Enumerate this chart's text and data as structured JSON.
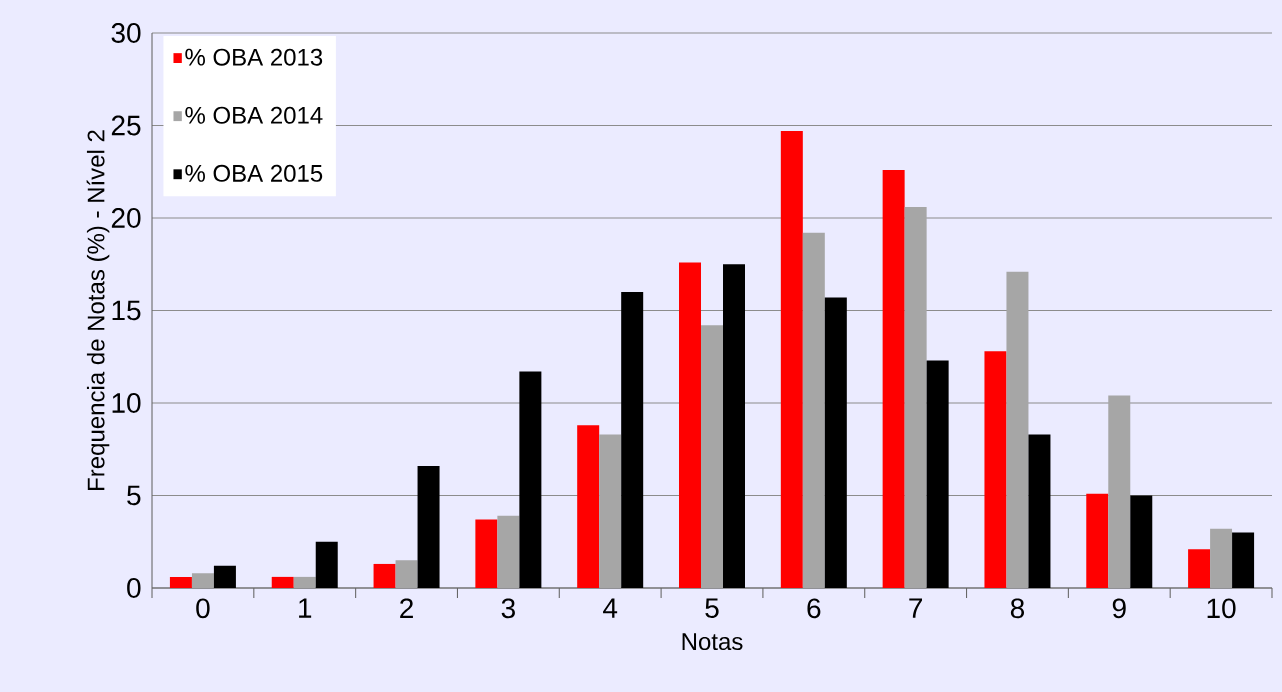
{
  "chart_data": {
    "type": "bar",
    "xlabel": "Notas",
    "ylabel": "Frequencia de Notas (%) - Nível 2",
    "categories": [
      "0",
      "1",
      "2",
      "3",
      "4",
      "5",
      "6",
      "7",
      "8",
      "9",
      "10"
    ],
    "series": [
      {
        "name": "% OBA 2013",
        "color": "#ff0000",
        "values": [
          0.6,
          0.6,
          1.3,
          3.7,
          8.8,
          17.6,
          24.7,
          22.6,
          12.8,
          5.1,
          2.1
        ]
      },
      {
        "name": "% OBA 2014",
        "color": "#a6a6a6",
        "values": [
          0.8,
          0.6,
          1.5,
          3.9,
          8.3,
          14.2,
          19.2,
          20.6,
          17.1,
          10.4,
          3.2
        ]
      },
      {
        "name": "% OBA 2015",
        "color": "#000000",
        "values": [
          1.2,
          2.5,
          6.6,
          11.7,
          16.0,
          17.5,
          15.7,
          12.3,
          8.3,
          5.0,
          3.0
        ]
      }
    ],
    "ylim": [
      0,
      30
    ],
    "yticks": [
      0,
      5,
      10,
      15,
      20,
      25,
      30
    ],
    "grid": "y",
    "legend": "top left"
  }
}
